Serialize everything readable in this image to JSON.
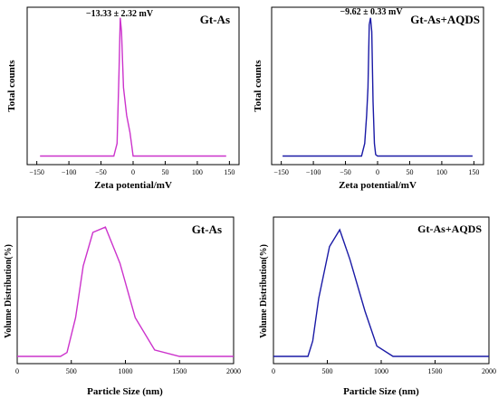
{
  "chart_data": [
    {
      "type": "line",
      "panel_label": "Gt-As",
      "annotation": "−13.33 ± 2.32 mV",
      "xlabel": "Zeta potential/mV",
      "ylabel": "Total counts",
      "xlim": [
        -165,
        165
      ],
      "ylim": [
        0,
        1.05
      ],
      "xticks": [
        -150,
        -100,
        -50,
        0,
        50,
        100,
        150
      ],
      "xtick_labels": [
        "−150",
        "−100",
        "−50",
        "0",
        "50",
        "100",
        "150"
      ],
      "color": "#cc33cc",
      "x": [
        -145,
        -30,
        -25,
        -22,
        -20,
        -18,
        -15,
        -10,
        -5,
        -2,
        0,
        3,
        5,
        145
      ],
      "y": [
        0.01,
        0.01,
        0.1,
        0.6,
        1.0,
        0.9,
        0.5,
        0.3,
        0.18,
        0.08,
        0.01,
        0.01,
        0.01,
        0.01
      ]
    },
    {
      "type": "line",
      "panel_label": "Gt-As+AQDS",
      "annotation": "−9.62 ± 0.33 mV",
      "xlabel": "Zeta potential/mV",
      "ylabel": "Total counts",
      "xlim": [
        -165,
        165
      ],
      "ylim": [
        0,
        1.05
      ],
      "xticks": [
        -150,
        -100,
        -50,
        0,
        50,
        100,
        150
      ],
      "xtick_labels": [
        "−150",
        "−100",
        "−50",
        "0",
        "50",
        "100",
        "150"
      ],
      "color": "#1a1aa6",
      "x": [
        -148,
        -25,
        -20,
        -17,
        -15,
        -13,
        -11,
        -9,
        -7,
        -5,
        -3,
        0,
        148
      ],
      "y": [
        0.01,
        0.01,
        0.1,
        0.3,
        0.5,
        0.95,
        1.0,
        0.9,
        0.4,
        0.1,
        0.02,
        0.01,
        0.01
      ]
    },
    {
      "type": "line",
      "panel_label": "Gt-As",
      "xlabel": "Particle Size (nm)",
      "ylabel": "Volume Distribution(%)",
      "xlim": [
        0,
        2000
      ],
      "ylim": [
        0,
        1.05
      ],
      "xticks": [
        0,
        500,
        1000,
        1500,
        2000
      ],
      "xtick_labels": [
        "0",
        "500",
        "1000",
        "1500",
        "2000"
      ],
      "color": "#cc33cc",
      "x": [
        0,
        400,
        460,
        540,
        610,
        700,
        815,
        950,
        1090,
        1270,
        1500,
        2000
      ],
      "y": [
        0.0,
        0.0,
        0.03,
        0.3,
        0.7,
        0.96,
        1.0,
        0.72,
        0.3,
        0.05,
        0.0,
        0.0
      ]
    },
    {
      "type": "line",
      "panel_label": "Gt-As+AQDS",
      "xlabel": "Particle Size (nm)",
      "ylabel": "Volume Distribution(%)",
      "xlim": [
        0,
        2000
      ],
      "ylim": [
        0,
        1.05
      ],
      "xticks": [
        0,
        500,
        1000,
        1500,
        2000
      ],
      "xtick_labels": [
        "0",
        "500",
        "1000",
        "1500",
        "2000"
      ],
      "color": "#1a1aa6",
      "x": [
        0,
        320,
        365,
        420,
        520,
        615,
        710,
        850,
        960,
        1110,
        2000
      ],
      "y": [
        0.0,
        0.0,
        0.12,
        0.45,
        0.85,
        0.98,
        0.75,
        0.35,
        0.08,
        0.0,
        0.0
      ]
    }
  ]
}
